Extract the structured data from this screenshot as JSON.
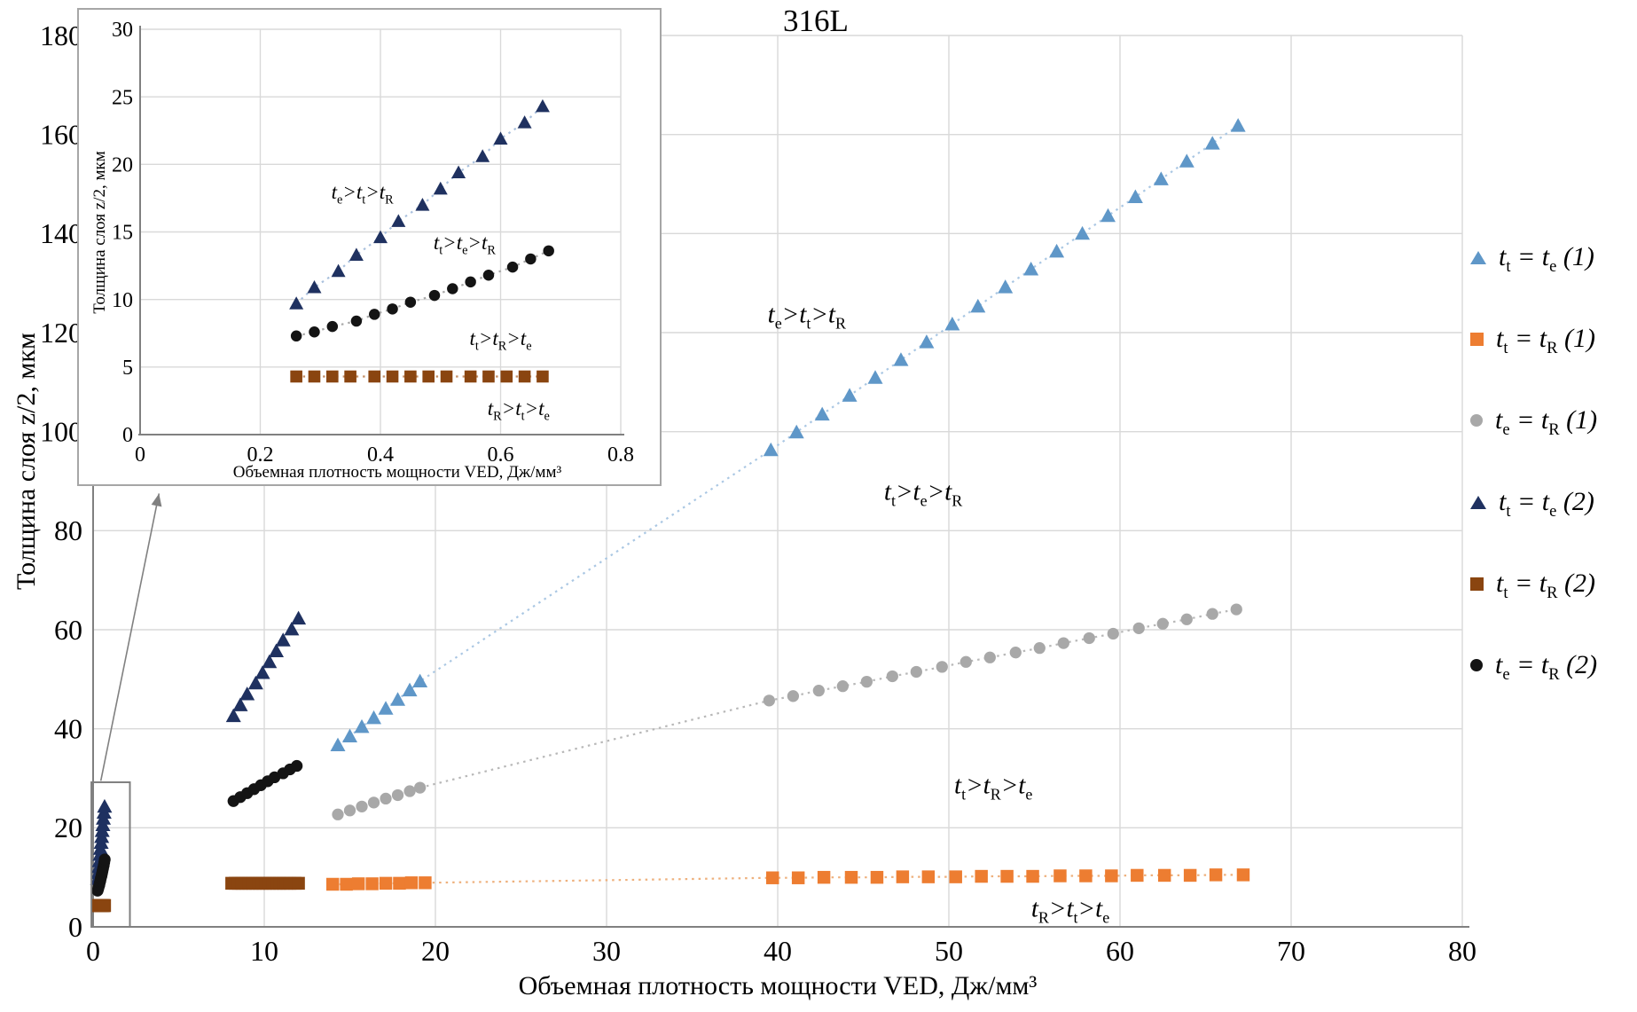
{
  "title": "316L",
  "legend": {
    "items": [
      {
        "label": "t_t = t_e (1)",
        "marker": "triangle",
        "color": "#5F97C8"
      },
      {
        "label": "t_t = t_R (1)",
        "marker": "square",
        "color": "#ED7D31"
      },
      {
        "label": "t_e = t_R (1)",
        "marker": "circle",
        "color": "#A8A8A8"
      },
      {
        "label": "t_t = t_e (2)",
        "marker": "triangle",
        "color": "#1F3160"
      },
      {
        "label": "t_t = t_R (2)",
        "marker": "square",
        "color": "#8A4510"
      },
      {
        "label": "t_e = t_R (2)",
        "marker": "circle",
        "color": "#141414"
      }
    ]
  },
  "chart_data": {
    "type": "scatter",
    "main": {
      "xlabel": "Объемная плотность мощности VED, Дж/мм³",
      "ylabel": "Толщина слоя z/2, мкм",
      "xlim": [
        0,
        80
      ],
      "ylim": [
        0,
        180
      ],
      "xticks": [
        0,
        10,
        20,
        30,
        40,
        50,
        60,
        70,
        80
      ],
      "yticks": [
        0,
        20,
        40,
        60,
        80,
        100,
        120,
        140,
        160,
        180
      ],
      "grid": true,
      "series": [
        {
          "id": "tt-te-1",
          "label": "t_t = t_e (1)",
          "marker": "triangle",
          "color": "#5F97C8",
          "trend": true,
          "trend_color": "#AAC7E3",
          "points": [
            [
              14.3,
              36.7
            ],
            [
              15.0,
              38.5
            ],
            [
              15.7,
              40.4
            ],
            [
              16.4,
              42.2
            ],
            [
              17.1,
              44.1
            ],
            [
              17.8,
              45.9
            ],
            [
              18.5,
              47.8
            ],
            [
              19.1,
              49.6
            ],
            [
              39.6,
              96.3
            ],
            [
              41.1,
              99.9
            ],
            [
              42.6,
              103.5
            ],
            [
              44.2,
              107.3
            ],
            [
              45.7,
              110.9
            ],
            [
              47.2,
              114.5
            ],
            [
              48.7,
              118.1
            ],
            [
              50.2,
              121.7
            ],
            [
              51.7,
              125.3
            ],
            [
              53.3,
              129.2
            ],
            [
              54.8,
              132.8
            ],
            [
              56.3,
              136.4
            ],
            [
              57.8,
              140.0
            ],
            [
              59.3,
              143.6
            ],
            [
              60.9,
              147.4
            ],
            [
              62.4,
              151.0
            ],
            [
              63.9,
              154.6
            ],
            [
              65.4,
              158.2
            ],
            [
              66.9,
              161.8
            ]
          ]
        },
        {
          "id": "tt-tr-1",
          "label": "t_t = t_R (1)",
          "marker": "square",
          "color": "#ED7D31",
          "trend": true,
          "trend_color": "#EEB07C",
          "points": [
            [
              14.0,
              8.6
            ],
            [
              14.8,
              8.6
            ],
            [
              15.5,
              8.7
            ],
            [
              16.3,
              8.7
            ],
            [
              17.1,
              8.8
            ],
            [
              17.9,
              8.8
            ],
            [
              18.6,
              8.9
            ],
            [
              19.4,
              8.9
            ],
            [
              39.7,
              9.9
            ],
            [
              41.2,
              9.9
            ],
            [
              42.7,
              10.0
            ],
            [
              44.3,
              10.0
            ],
            [
              45.8,
              10.0
            ],
            [
              47.3,
              10.1
            ],
            [
              48.8,
              10.1
            ],
            [
              50.4,
              10.1
            ],
            [
              51.9,
              10.2
            ],
            [
              53.4,
              10.2
            ],
            [
              54.9,
              10.2
            ],
            [
              56.5,
              10.3
            ],
            [
              58.0,
              10.3
            ],
            [
              59.5,
              10.3
            ],
            [
              61.0,
              10.4
            ],
            [
              62.6,
              10.4
            ],
            [
              64.1,
              10.4
            ],
            [
              65.6,
              10.5
            ],
            [
              67.2,
              10.5
            ]
          ]
        },
        {
          "id": "te-tr-1",
          "label": "t_e = t_R (1)",
          "marker": "circle",
          "color": "#A8A8A8",
          "trend": true,
          "trend_color": "#B8B8B8",
          "points": [
            [
              14.3,
              22.7
            ],
            [
              15.0,
              23.5
            ],
            [
              15.7,
              24.3
            ],
            [
              16.4,
              25.1
            ],
            [
              17.1,
              25.9
            ],
            [
              17.8,
              26.6
            ],
            [
              18.5,
              27.4
            ],
            [
              19.1,
              28.1
            ],
            [
              39.5,
              45.7
            ],
            [
              40.9,
              46.6
            ],
            [
              42.4,
              47.7
            ],
            [
              43.8,
              48.6
            ],
            [
              45.2,
              49.5
            ],
            [
              46.7,
              50.6
            ],
            [
              48.1,
              51.5
            ],
            [
              49.6,
              52.5
            ],
            [
              51.0,
              53.5
            ],
            [
              52.4,
              54.4
            ],
            [
              53.9,
              55.4
            ],
            [
              55.3,
              56.3
            ],
            [
              56.7,
              57.3
            ],
            [
              58.2,
              58.3
            ],
            [
              59.6,
              59.2
            ],
            [
              61.1,
              60.3
            ],
            [
              62.5,
              61.2
            ],
            [
              63.9,
              62.1
            ],
            [
              65.4,
              63.2
            ],
            [
              66.8,
              64.1
            ]
          ]
        },
        {
          "id": "tt-te-2",
          "label": "t_t = t_e (2)",
          "marker": "triangle",
          "color": "#1F3160",
          "trend": false,
          "points": [
            [
              0.26,
              9.7
            ],
            [
              0.29,
              10.9
            ],
            [
              0.33,
              12.1
            ],
            [
              0.36,
              13.3
            ],
            [
              0.4,
              14.6
            ],
            [
              0.43,
              15.8
            ],
            [
              0.47,
              17.0
            ],
            [
              0.5,
              18.2
            ],
            [
              0.53,
              19.4
            ],
            [
              0.57,
              20.6
            ],
            [
              0.6,
              21.9
            ],
            [
              0.64,
              23.1
            ],
            [
              0.67,
              24.3
            ],
            [
              8.2,
              42.6
            ],
            [
              8.6,
              44.8
            ],
            [
              9.0,
              47.0
            ],
            [
              9.5,
              49.2
            ],
            [
              9.9,
              51.3
            ],
            [
              10.3,
              53.5
            ],
            [
              10.7,
              55.7
            ],
            [
              11.1,
              57.9
            ],
            [
              11.6,
              60.1
            ],
            [
              12.0,
              62.3
            ]
          ]
        },
        {
          "id": "tt-tr-2",
          "label": "t_t = t_R (2)",
          "marker": "square",
          "color": "#8A4510",
          "trend": false,
          "points": [
            [
              0.26,
              4.3
            ],
            [
              0.29,
              4.3
            ],
            [
              0.32,
              4.3
            ],
            [
              0.35,
              4.3
            ],
            [
              0.39,
              4.3
            ],
            [
              0.42,
              4.3
            ],
            [
              0.45,
              4.3
            ],
            [
              0.48,
              4.3
            ],
            [
              0.51,
              4.3
            ],
            [
              0.55,
              4.3
            ],
            [
              0.58,
              4.3
            ],
            [
              0.61,
              4.3
            ],
            [
              0.64,
              4.3
            ],
            [
              0.67,
              4.3
            ],
            [
              8.1,
              8.8
            ],
            [
              8.3,
              8.8
            ],
            [
              8.5,
              8.8
            ],
            [
              8.7,
              8.8
            ],
            [
              8.9,
              8.8
            ],
            [
              9.1,
              8.8
            ],
            [
              9.3,
              8.8
            ],
            [
              9.5,
              8.8
            ],
            [
              9.7,
              8.8
            ],
            [
              9.9,
              8.8
            ],
            [
              10.1,
              8.8
            ],
            [
              10.3,
              8.8
            ],
            [
              10.5,
              8.8
            ],
            [
              10.7,
              8.8
            ],
            [
              10.9,
              8.8
            ],
            [
              11.1,
              8.8
            ],
            [
              11.3,
              8.8
            ],
            [
              11.5,
              8.8
            ],
            [
              11.8,
              8.8
            ],
            [
              12.0,
              8.8
            ]
          ]
        },
        {
          "id": "te-tr-2",
          "label": "t_e = t_R (2)",
          "marker": "circle",
          "color": "#141414",
          "trend": false,
          "points": [
            [
              0.26,
              7.3
            ],
            [
              0.29,
              7.6
            ],
            [
              0.32,
              8.0
            ],
            [
              0.36,
              8.4
            ],
            [
              0.39,
              8.9
            ],
            [
              0.42,
              9.3
            ],
            [
              0.45,
              9.8
            ],
            [
              0.49,
              10.3
            ],
            [
              0.52,
              10.8
            ],
            [
              0.55,
              11.3
            ],
            [
              0.58,
              11.8
            ],
            [
              0.62,
              12.4
            ],
            [
              0.65,
              13.0
            ],
            [
              0.68,
              13.6
            ],
            [
              8.2,
              25.4
            ],
            [
              8.6,
              26.2
            ],
            [
              9.0,
              27.0
            ],
            [
              9.4,
              27.8
            ],
            [
              9.8,
              28.6
            ],
            [
              10.2,
              29.4
            ],
            [
              10.6,
              30.2
            ],
            [
              11.1,
              31.0
            ],
            [
              11.5,
              31.8
            ],
            [
              11.9,
              32.5
            ]
          ]
        }
      ],
      "annotations": [
        {
          "text": "t_e>t_t>t_R",
          "x": 41.7,
          "y": 123.5
        },
        {
          "text": "t_t>t_e>t_R",
          "x": 48.5,
          "y": 87.7
        },
        {
          "text": "t_t>t_R>t_e",
          "x": 52.6,
          "y": 28.5
        },
        {
          "text": "t_R>t_t>t_e",
          "x": 57.1,
          "y": 3.6
        }
      ],
      "zoom_box": {
        "x0": -0.1,
        "x1": 2.15,
        "y0": 0,
        "y1": 29.2
      },
      "arrow": {
        "from": [
          0.45,
          29.5
        ],
        "to": [
          3.85,
          87.5
        ]
      }
    },
    "inset": {
      "xlabel": "Объемная плотность мощности VED, Дж/мм³",
      "ylabel": "Толщина слоя z/2, мкм",
      "xlim": [
        0,
        0.8
      ],
      "ylim": [
        0,
        30
      ],
      "xticks": [
        0,
        0.2,
        0.4,
        0.6,
        0.8
      ],
      "yticks": [
        0,
        5,
        10,
        15,
        20,
        25,
        30
      ],
      "grid": true,
      "series": [
        {
          "id": "ins-tt-te-2",
          "label": "t_t = t_e (2)",
          "marker": "triangle",
          "color": "#1F3160",
          "trend": true,
          "trend_color": "#A9C0DD",
          "points": [
            [
              0.26,
              9.7
            ],
            [
              0.29,
              10.9
            ],
            [
              0.33,
              12.1
            ],
            [
              0.36,
              13.3
            ],
            [
              0.4,
              14.6
            ],
            [
              0.43,
              15.8
            ],
            [
              0.47,
              17.0
            ],
            [
              0.5,
              18.2
            ],
            [
              0.53,
              19.4
            ],
            [
              0.57,
              20.6
            ],
            [
              0.6,
              21.9
            ],
            [
              0.64,
              23.1
            ],
            [
              0.67,
              24.3
            ]
          ]
        },
        {
          "id": "ins-te-tr-2",
          "label": "t_e = t_R (2)",
          "marker": "circle",
          "color": "#141414",
          "trend": true,
          "trend_color": "#A8A8A8",
          "points": [
            [
              0.26,
              7.3
            ],
            [
              0.29,
              7.6
            ],
            [
              0.32,
              8.0
            ],
            [
              0.36,
              8.4
            ],
            [
              0.39,
              8.9
            ],
            [
              0.42,
              9.3
            ],
            [
              0.45,
              9.8
            ],
            [
              0.49,
              10.3
            ],
            [
              0.52,
              10.8
            ],
            [
              0.55,
              11.3
            ],
            [
              0.58,
              11.8
            ],
            [
              0.62,
              12.4
            ],
            [
              0.65,
              13.0
            ],
            [
              0.68,
              13.6
            ]
          ]
        },
        {
          "id": "ins-tt-tr-2",
          "label": "t_t = t_R (2)",
          "marker": "square",
          "color": "#8A4510",
          "trend": true,
          "trend_color": "#C49067",
          "points": [
            [
              0.26,
              4.3
            ],
            [
              0.29,
              4.3
            ],
            [
              0.32,
              4.3
            ],
            [
              0.35,
              4.3
            ],
            [
              0.39,
              4.3
            ],
            [
              0.42,
              4.3
            ],
            [
              0.45,
              4.3
            ],
            [
              0.48,
              4.3
            ],
            [
              0.51,
              4.3
            ],
            [
              0.55,
              4.3
            ],
            [
              0.58,
              4.3
            ],
            [
              0.61,
              4.3
            ],
            [
              0.64,
              4.3
            ],
            [
              0.67,
              4.3
            ]
          ]
        }
      ],
      "annotations": [
        {
          "text": "t_e>t_t>t_R",
          "x": 0.37,
          "y": 17.9
        },
        {
          "text": "t_t>t_e>t_R",
          "x": 0.54,
          "y": 14.2
        },
        {
          "text": "t_t>t_R>t_e",
          "x": 0.6,
          "y": 7.1
        },
        {
          "text": "t_R>t_t>t_e",
          "x": 0.63,
          "y": 1.9
        }
      ]
    },
    "colors": {
      "grid": "#d9d9d9",
      "axis": "#808080",
      "box": "#7f7f7f",
      "inset_border": "#a6a6a6"
    }
  }
}
